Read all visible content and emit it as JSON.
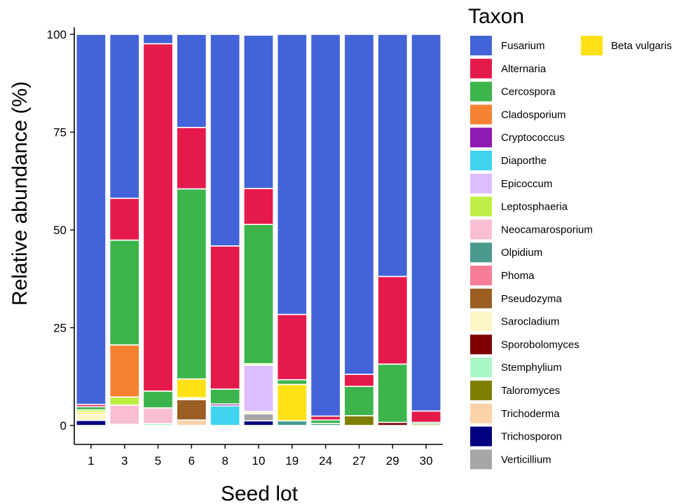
{
  "chart_data": {
    "type": "bar",
    "stacked": true,
    "xlabel": "Seed lot",
    "ylabel": "Relative abundance (%)",
    "ylim": [
      0,
      100
    ],
    "yticks": [
      0,
      25,
      50,
      75,
      100
    ],
    "categories": [
      "1",
      "3",
      "5",
      "6",
      "8",
      "10",
      "19",
      "24",
      "27",
      "29",
      "30"
    ],
    "legend_title": "Taxon",
    "legend_position": "right",
    "grid": false,
    "series": [
      {
        "name": "Trichosporon",
        "color": "#000080",
        "values": [
          1.3,
          0,
          0,
          0,
          0,
          1.2,
          0,
          0,
          0,
          0,
          0
        ]
      },
      {
        "name": "Verticillium",
        "color": "#a6a6a6",
        "values": [
          0,
          0,
          0,
          0,
          0,
          1.8,
          0,
          0,
          0,
          0,
          0
        ]
      },
      {
        "name": "Trichoderma",
        "color": "#fcd2a8",
        "values": [
          0,
          0,
          0,
          1.4,
          0,
          0,
          0,
          0,
          0,
          0,
          0
        ]
      },
      {
        "name": "Olpidium",
        "color": "#4a9a8f",
        "values": [
          0,
          0,
          0,
          0,
          0,
          0,
          1.2,
          0.5,
          0,
          0,
          0
        ]
      },
      {
        "name": "Stemphylium",
        "color": "#a9f7c6",
        "values": [
          0,
          0,
          0.5,
          0,
          0,
          0,
          0,
          0,
          0,
          0,
          0
        ]
      },
      {
        "name": "Taloromyces",
        "color": "#7f7f00",
        "values": [
          0,
          0,
          0,
          0,
          0,
          0,
          0,
          0,
          2.5,
          0,
          0.4
        ]
      },
      {
        "name": "Sporobolomyces",
        "color": "#800000",
        "values": [
          0,
          0,
          0,
          0,
          0,
          0,
          0,
          0,
          0,
          0.8,
          0
        ]
      },
      {
        "name": "Diaporthe",
        "color": "#3fd3f0",
        "values": [
          0,
          0,
          0,
          0,
          5.0,
          0,
          0,
          0,
          0,
          0,
          0
        ]
      },
      {
        "name": "Pseudozyma",
        "color": "#9b5e23",
        "values": [
          0,
          0,
          0,
          5.2,
          0,
          0,
          0,
          0,
          0,
          0,
          0
        ]
      },
      {
        "name": "Cryptococcus",
        "color": "#8f19b4",
        "values": [
          0,
          0.3,
          0,
          0,
          0.5,
          0,
          0,
          0,
          0,
          0,
          0
        ]
      },
      {
        "name": "Sarocladium",
        "color": "#fff6c8",
        "values": [
          1.6,
          0,
          0,
          0.5,
          0,
          0.6,
          0,
          0,
          0,
          0,
          0
        ]
      },
      {
        "name": "Epicoccum",
        "color": "#dbbeff",
        "values": [
          0,
          0,
          0,
          0,
          0,
          11.8,
          0,
          0,
          0,
          0,
          0
        ]
      },
      {
        "name": "Neocamarosporium",
        "color": "#fabed4",
        "values": [
          0,
          4.9,
          4.0,
          0,
          0,
          0,
          0,
          0,
          0,
          0,
          0
        ]
      },
      {
        "name": "Beta vulgaris",
        "color": "#ffe118",
        "values": [
          0.5,
          0,
          0,
          4.8,
          0,
          0,
          9.3,
          0,
          0,
          0,
          0
        ]
      },
      {
        "name": "Leptosphaeria",
        "color": "#bfef45",
        "values": [
          0.6,
          2.1,
          0,
          0,
          0,
          0.4,
          0,
          0,
          0,
          0,
          0
        ]
      },
      {
        "name": "Cladosporium",
        "color": "#f58231",
        "values": [
          0,
          13.3,
          0,
          0,
          0,
          0,
          0,
          0,
          0,
          0,
          0
        ]
      },
      {
        "name": "Cercospora",
        "color": "#3cb44b",
        "values": [
          0.8,
          26.8,
          4.3,
          48.6,
          3.8,
          35.6,
          1.2,
          0.9,
          7.5,
          14.9,
          0.4
        ]
      },
      {
        "name": "Alternaria",
        "color": "#e6194b",
        "values": [
          0.6,
          10.7,
          88.8,
          15.7,
          36.6,
          9.2,
          16.7,
          1.0,
          3.1,
          22.4,
          2.9
        ]
      },
      {
        "name": "Fusarium",
        "color": "#4363d8",
        "values": [
          94.6,
          41.9,
          2.4,
          23.8,
          54.1,
          39.2,
          71.6,
          97.6,
          86.9,
          61.9,
          96.3
        ]
      },
      {
        "name": "Phoma",
        "color": "#f77c95",
        "values": [
          0,
          0,
          0,
          0,
          0,
          0,
          0,
          0,
          0,
          0,
          0
        ]
      }
    ],
    "legend_entries": [
      "Fusarium",
      "Alternaria",
      "Cercospora",
      "Cladosporium",
      "Cryptococcus",
      "Diaporthe",
      "Epicoccum",
      "Leptosphaeria",
      "Neocamarosporium",
      "Olpidium",
      "Phoma",
      "Pseudozyma",
      "Sarocladium",
      "Sporobolomyces",
      "Stemphylium",
      "Taloromyces",
      "Trichoderma",
      "Trichosporon",
      "Verticillium"
    ],
    "legend_entries_col2": [
      "Beta vulgaris"
    ]
  }
}
